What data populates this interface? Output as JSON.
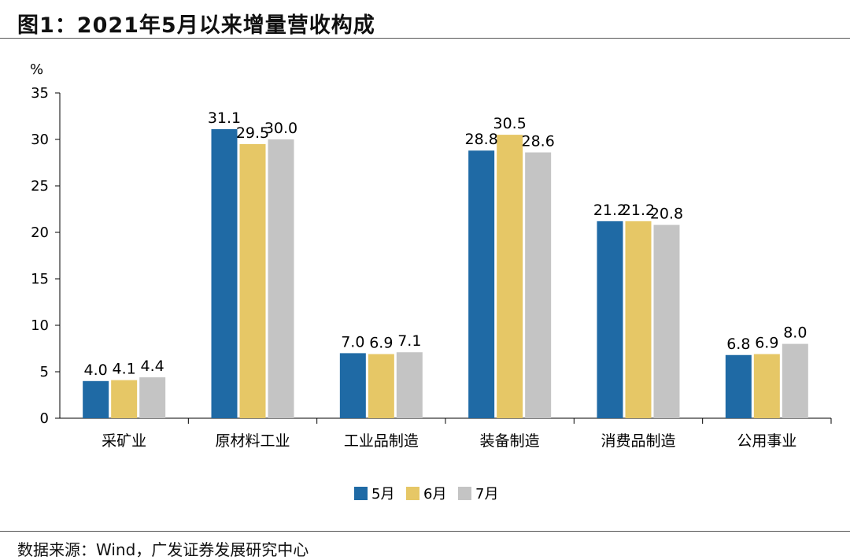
{
  "title": "图1：2021年5月以来增量营收构成",
  "source": "数据来源：Wind，广发证券发展研究中心",
  "chart_data": {
    "type": "bar",
    "ylabel": "%",
    "ylim": [
      0,
      35
    ],
    "yticks": [
      0,
      5,
      10,
      15,
      20,
      25,
      30,
      35
    ],
    "grid": false,
    "legend_position": "bottom",
    "categories": [
      "采矿业",
      "原材料工业",
      "工业品制造",
      "装备制造",
      "消费品制造",
      "公用事业"
    ],
    "series": [
      {
        "name": "5月",
        "color": "#1f6aa5",
        "values": [
          4.0,
          31.1,
          7.0,
          28.8,
          21.2,
          6.8
        ]
      },
      {
        "name": "6月",
        "color": "#e6c766",
        "values": [
          4.1,
          29.5,
          6.9,
          30.5,
          21.2,
          6.9
        ]
      },
      {
        "name": "7月",
        "color": "#c4c4c4",
        "values": [
          4.4,
          30.0,
          7.1,
          28.6,
          20.8,
          8.0
        ]
      }
    ]
  }
}
